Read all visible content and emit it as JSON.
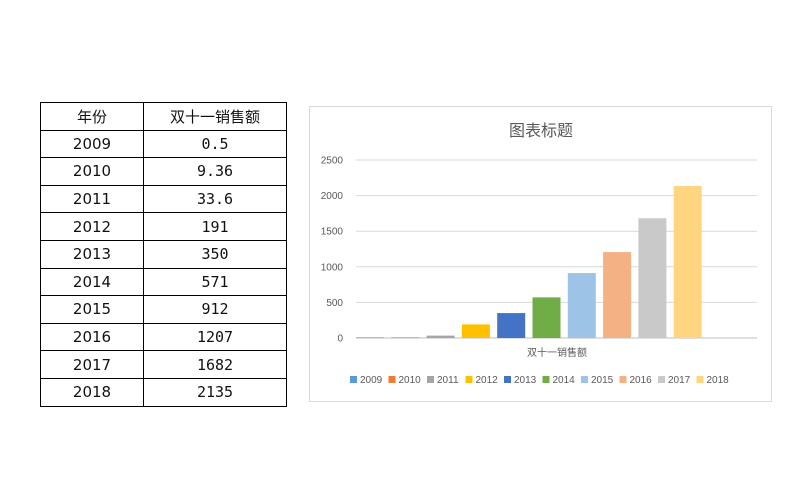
{
  "table": {
    "headers": [
      "年份",
      "双十一销售额"
    ],
    "rows": [
      [
        "2009",
        "0.5"
      ],
      [
        "2010",
        "9.36"
      ],
      [
        "2011",
        "33.6"
      ],
      [
        "2012",
        "191"
      ],
      [
        "2013",
        "350"
      ],
      [
        "2014",
        "571"
      ],
      [
        "2015",
        "912"
      ],
      [
        "2016",
        "1207"
      ],
      [
        "2017",
        "1682"
      ],
      [
        "2018",
        "2135"
      ]
    ]
  },
  "chart_data": {
    "type": "bar",
    "title": "图表标题",
    "categories": [
      "双十一销售额"
    ],
    "series": [
      {
        "name": "2009",
        "values": [
          0.5
        ],
        "color": "#5B9BD5"
      },
      {
        "name": "2010",
        "values": [
          9.36
        ],
        "color": "#ED7D31"
      },
      {
        "name": "2011",
        "values": [
          33.6
        ],
        "color": "#A5A5A5"
      },
      {
        "name": "2012",
        "values": [
          191
        ],
        "color": "#FFC000"
      },
      {
        "name": "2013",
        "values": [
          350
        ],
        "color": "#4472C4"
      },
      {
        "name": "2014",
        "values": [
          571
        ],
        "color": "#70AD47"
      },
      {
        "name": "2015",
        "values": [
          912
        ],
        "color": "#9DC3E6"
      },
      {
        "name": "2016",
        "values": [
          1207
        ],
        "color": "#F4B183"
      },
      {
        "name": "2017",
        "values": [
          1682
        ],
        "color": "#C9C9C9"
      },
      {
        "name": "2018",
        "values": [
          2135
        ],
        "color": "#FFD580"
      }
    ],
    "ylim": [
      0,
      2500
    ],
    "yticks": [
      "2500",
      "2000",
      "1500",
      "1000",
      "500",
      "0"
    ],
    "grid": true,
    "legend_position": "bottom"
  }
}
